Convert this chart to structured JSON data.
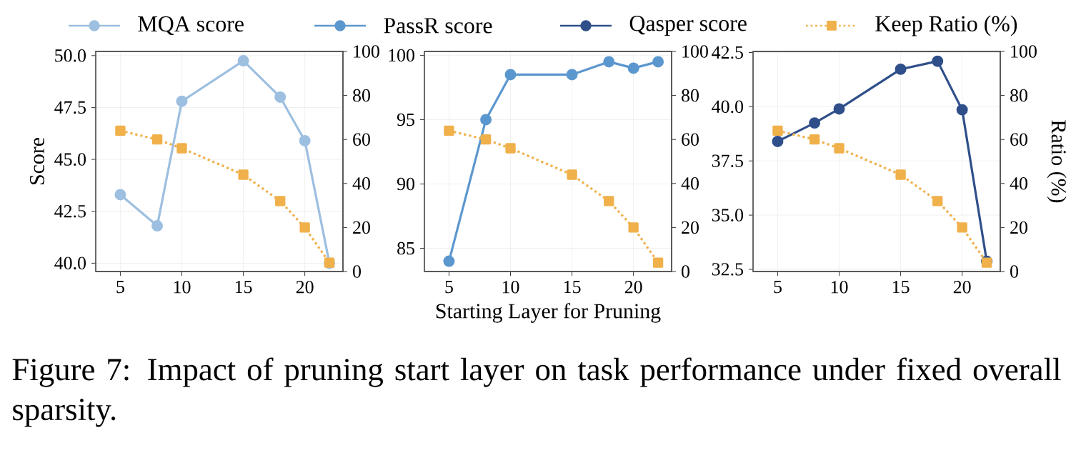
{
  "chart_data": [
    {
      "type": "line",
      "ylabel": "Score",
      "x": [
        5,
        8,
        10,
        15,
        18,
        20,
        22
      ],
      "xlim": [
        3,
        23.1
      ],
      "xticks": [
        5,
        10,
        15,
        20
      ],
      "ylim": [
        39.6,
        50.2
      ],
      "yticks": [
        {
          "value": 40,
          "label": "40.0"
        },
        {
          "value": 42.5,
          "label": "42.5"
        },
        {
          "value": 45,
          "label": "45.0"
        },
        {
          "value": 47.5,
          "label": "47.5"
        },
        {
          "value": 50,
          "label": "50.0"
        }
      ],
      "y2lim": [
        0,
        100
      ],
      "y2ticks": [
        0,
        20,
        40,
        60,
        80,
        100
      ],
      "grid": true,
      "legend": "top",
      "series": [
        {
          "name": "MQA score",
          "color": "#9dbfe0",
          "marker": "circle",
          "line_style": "solid",
          "values": [
            43.3,
            41.8,
            47.8,
            49.75,
            48.0,
            45.9,
            40.0
          ]
        },
        {
          "color": "#f0b04a",
          "axis": "y2",
          "marker": "square",
          "line_style": "dotted",
          "values": [
            64,
            60,
            56,
            44,
            32,
            20,
            4
          ]
        }
      ],
      "annotations": [
        "Figure 7: Impact of pruning start layer on task performance under fixed overall sparsity."
      ]
    },
    {
      "type": "line",
      "xlabel": "Starting Layer for Pruning",
      "x": [
        5,
        8,
        10,
        15,
        18,
        20,
        22
      ],
      "xlim": [
        3,
        23.1
      ],
      "xticks": [
        5,
        10,
        15,
        20
      ],
      "ylim": [
        83.2,
        100.3
      ],
      "yticks": [
        85,
        90,
        95,
        100
      ],
      "y2lim": [
        0,
        100
      ],
      "y2ticks": [
        0,
        20,
        40,
        60,
        80,
        100
      ],
      "grid": true,
      "legend": "top",
      "series": [
        {
          "name": "PassR score",
          "color": "#5b97cf",
          "marker": "circle",
          "line_style": "solid",
          "values": [
            84.0,
            95.0,
            98.5,
            98.5,
            99.5,
            99.0,
            99.5
          ]
        },
        {
          "color": "#f0b04a",
          "axis": "y2",
          "marker": "square",
          "line_style": "dotted",
          "values": [
            64,
            60,
            56,
            44,
            32,
            20,
            4
          ]
        }
      ]
    },
    {
      "type": "line",
      "y2label": "Ratio (%)",
      "x": [
        5,
        8,
        10,
        15,
        18,
        20,
        22
      ],
      "xlim": [
        3,
        23.1
      ],
      "xticks": [
        5,
        10,
        15,
        20
      ],
      "ylim": [
        32.4,
        42.55
      ],
      "yticks": [
        {
          "value": 32.5,
          "label": "32.5"
        },
        {
          "value": 35,
          "label": "35.0"
        },
        {
          "value": 37.5,
          "label": "37.5"
        },
        {
          "value": 40,
          "label": "40.0"
        },
        {
          "value": 42.5,
          "label": "42.5"
        }
      ],
      "y2lim": [
        0,
        100
      ],
      "y2ticks": [
        0,
        20,
        40,
        60,
        80,
        100
      ],
      "grid": true,
      "legend": "top",
      "series": [
        {
          "name": "Qasper score",
          "color": "#2f4f8a",
          "marker": "circle",
          "line_style": "solid",
          "values": [
            38.4,
            39.25,
            39.9,
            41.73,
            42.1,
            39.86,
            32.87
          ]
        },
        {
          "name": "Keep Ratio (%)",
          "color": "#f0b04a",
          "axis": "y2",
          "marker": "square",
          "line_style": "dotted",
          "values": [
            64,
            60,
            56,
            44,
            32,
            20,
            4
          ]
        }
      ]
    }
  ]
}
